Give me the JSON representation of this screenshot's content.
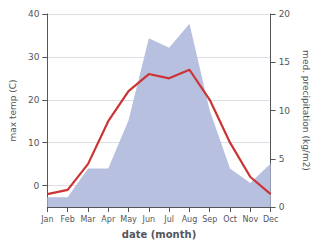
{
  "chart_data": {
    "type": "line",
    "categories": [
      "Jan",
      "Feb",
      "Mar",
      "Apr",
      "May",
      "Jun",
      "Jul",
      "Aug",
      "Sep",
      "Oct",
      "Nov",
      "Dec"
    ],
    "series": [
      {
        "type": "area",
        "axis": "y2",
        "color": "#b8c0e0",
        "values": [
          1,
          1,
          4,
          4,
          9,
          17.5,
          16.5,
          19,
          10,
          4,
          2.5,
          4.5
        ]
      },
      {
        "type": "line",
        "color": "#cc3333",
        "values": [
          -2,
          -1,
          5,
          15,
          22,
          26,
          25,
          27,
          20,
          10,
          2,
          -2
        ]
      }
    ],
    "xlabel": "date (month)",
    "ylabel": "max temp (C)",
    "y2label": "med. precipitation (kg/m2)",
    "ylim": [
      -5,
      40
    ],
    "yticks": [
      0,
      10,
      20,
      30,
      40
    ],
    "y2lim": [
      0,
      20
    ],
    "y2ticks": [
      0,
      5,
      10,
      15,
      20
    ],
    "grid": true
  }
}
